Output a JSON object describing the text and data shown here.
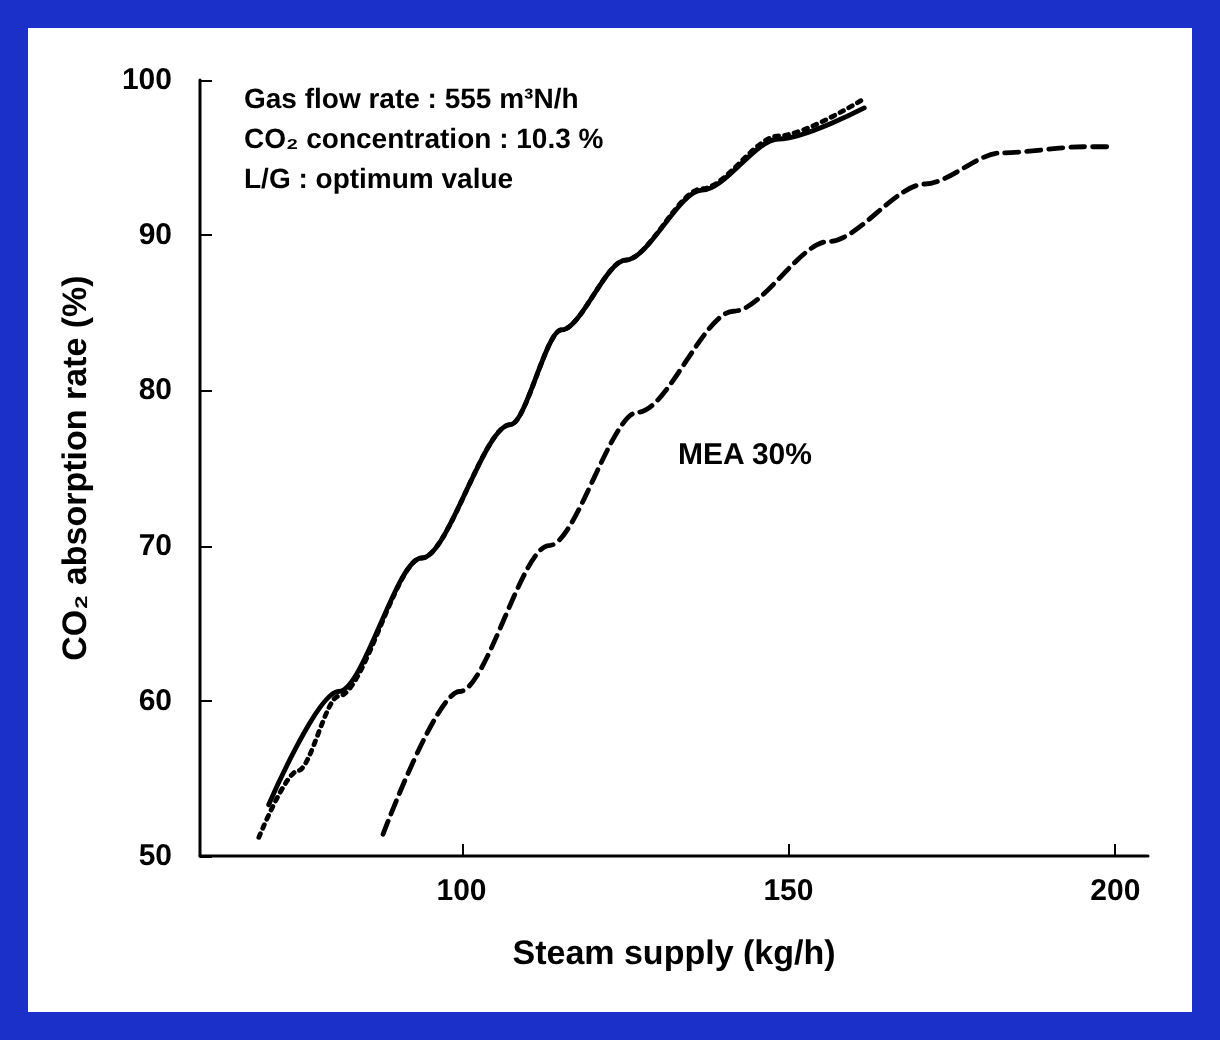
{
  "chart_data": {
    "type": "line",
    "xlabel": "Steam supply (kg/h)",
    "ylabel": "CO₂ absorption rate (%)",
    "annotations": [
      "Gas flow rate : 555 m³N/h",
      "CO₂ concentration : 10.3 %",
      "L/G : optimum value"
    ],
    "xlim": [
      60,
      205
    ],
    "xticks": [
      100,
      150,
      200
    ],
    "ylim": [
      50,
      100
    ],
    "yticks": [
      50,
      60,
      70,
      80,
      90,
      100
    ],
    "grid": false,
    "legend": false,
    "marker": "none",
    "series": [
      {
        "color": "#000000",
        "line_style": "solid",
        "x": [
          70.5,
          81.2,
          93.9,
          107.5,
          115.3,
          125.1,
          136.8,
          148.5,
          161.6
        ],
        "values": [
          53.3,
          60.6,
          69.2,
          77.8,
          83.9,
          88.4,
          92.9,
          96.2,
          98.2
        ]
      },
      {
        "color": "#000000",
        "line_style": "dotted",
        "x": [
          69,
          75,
          81.2,
          93.9,
          107.5,
          115.3,
          125.1,
          136.8,
          148.5,
          161.6
        ],
        "values": [
          51.2,
          55.5,
          60.3,
          69.2,
          77.8,
          83.9,
          88.4,
          93.0,
          96.4,
          98.8
        ]
      },
      {
        "name": "MEA 30%",
        "color": "#000000",
        "line_style": "dashed",
        "x": [
          88,
          99.7,
          113.4,
          127,
          141.6,
          156.2,
          170.9,
          182.5,
          195.2,
          199.5
        ],
        "values": [
          51.4,
          60.6,
          70,
          78.6,
          85.1,
          89.6,
          93.3,
          95.3,
          95.7,
          95.7
        ]
      }
    ]
  }
}
